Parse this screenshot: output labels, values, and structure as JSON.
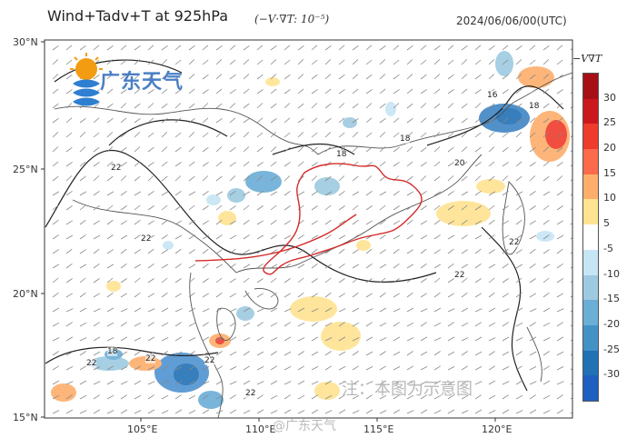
{
  "header": {
    "title": "Wind+Tadv+T at 925hPa",
    "formula": "(−V·∇T: 10⁻⁵)",
    "datetime": "2024/06/06/00(UTC)"
  },
  "map": {
    "lat_labels": [
      "30°N",
      "25°N",
      "20°N",
      "15°N"
    ],
    "lon_labels": [
      "105°E",
      "110°E",
      "115°E",
      "120°E"
    ],
    "lat_range": [
      15,
      30
    ],
    "lon_range": [
      101,
      123
    ],
    "isotherm_labels": [
      "22",
      "22",
      "22",
      "18",
      "18",
      "20",
      "18",
      "16",
      "18",
      "22",
      "22",
      "22",
      "22",
      "22"
    ]
  },
  "colorbar": {
    "label": "−V∇T",
    "ticks": [
      "30",
      "25",
      "20",
      "15",
      "10",
      "5",
      "-5",
      "-10",
      "-15",
      "-20",
      "-25",
      "-30"
    ],
    "colors": [
      "#a50f15",
      "#cb181d",
      "#ef3b2c",
      "#fb6a4a",
      "#fdae6b",
      "#fee391",
      "#ffffff",
      "#c6e5f5",
      "#9ecae1",
      "#6baed6",
      "#4292c6",
      "#2171b5",
      "#1f5fbf"
    ]
  },
  "branding": {
    "logo_text": "广东天气",
    "note": "注：本图为示意图",
    "watermark": "@广东天气"
  }
}
